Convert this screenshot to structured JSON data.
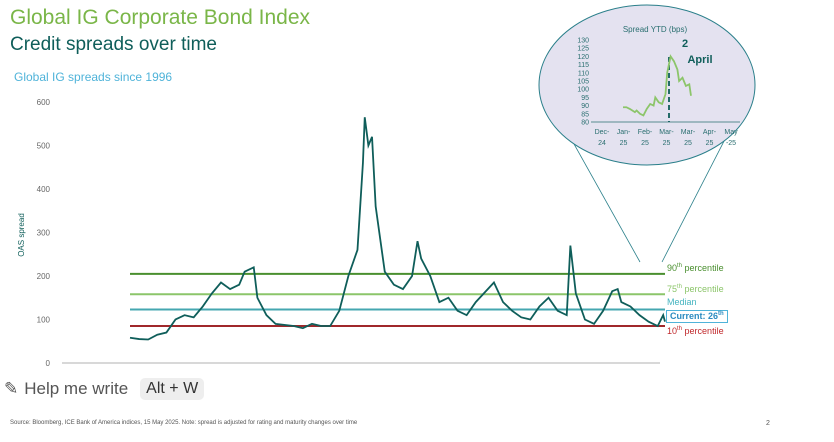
{
  "header": {
    "title": "Global IG Corporate Bond Index",
    "subtitle": "Credit spreads over time"
  },
  "footer": {
    "source": "Source: Bloomberg, ICE Bank of America indices, 15 May 2025. Note: spread is adjusted for rating and maturity changes over time",
    "page": "2"
  },
  "overlay": {
    "help_label": "Help me write",
    "shortcut": "Alt + W"
  },
  "legend": {
    "p90": "90",
    "p75": "75",
    "median": "Median",
    "current": "Current: 26",
    "p10": "10",
    "th": "th",
    "percentile": "percentile"
  },
  "colors": {
    "series": "#0f5e5a",
    "p90": "#4a8f2f",
    "p75": "#8cc56a",
    "median": "#45a7b0",
    "p10": "#a0282b",
    "inset_bg": "#e4e2f0",
    "inset_line": "#8cc56a"
  },
  "chart_data": [
    {
      "type": "line",
      "title": "Global IG spreads since 1996",
      "ylabel": "OAS spread",
      "ylim": [
        0,
        600
      ],
      "yticks": [
        "0",
        "100",
        "200",
        "300",
        "400",
        "500",
        "600"
      ],
      "x": [
        1996,
        1996.5,
        1997,
        1997.5,
        1998,
        1998.5,
        1999,
        1999.5,
        2000,
        2000.5,
        2001,
        2001.5,
        2002,
        2002.3,
        2002.8,
        2003,
        2003.5,
        2004,
        2005,
        2005.5,
        2006,
        2006.5,
        2007,
        2007.5,
        2008,
        2008.5,
        2008.8,
        2008.9,
        2009.1,
        2009.3,
        2009.5,
        2010,
        2010.5,
        2011,
        2011.5,
        2011.8,
        2012,
        2012.5,
        2013,
        2013.5,
        2014,
        2014.5,
        2015,
        2016,
        2016.5,
        2017,
        2017.5,
        2018,
        2018.5,
        2019,
        2019.5,
        2020,
        2020.2,
        2020.5,
        2021,
        2021.5,
        2022,
        2022.5,
        2022.8,
        2023,
        2023.5,
        2024,
        2024.5,
        2025,
        2025.3,
        2025.4
      ],
      "y": [
        58,
        55,
        54,
        65,
        70,
        100,
        110,
        105,
        130,
        160,
        185,
        170,
        180,
        210,
        220,
        150,
        110,
        90,
        85,
        80,
        90,
        85,
        85,
        120,
        200,
        260,
        460,
        565,
        500,
        520,
        360,
        210,
        180,
        170,
        200,
        280,
        240,
        200,
        140,
        150,
        120,
        110,
        140,
        185,
        140,
        120,
        105,
        100,
        130,
        150,
        120,
        110,
        270,
        160,
        100,
        90,
        120,
        165,
        170,
        140,
        130,
        110,
        95,
        85,
        110,
        95
      ],
      "percentiles": {
        "p90": 205,
        "p75": 158,
        "median": 123,
        "p10": 85,
        "current": 95
      }
    },
    {
      "type": "line",
      "title": "Spread YTD (bps)",
      "annotation": "2 April",
      "annotation_num": "2",
      "annotation_word": "April",
      "ylim": [
        80,
        130
      ],
      "yticks": [
        "80",
        "85",
        "90",
        "95",
        "100",
        "105",
        "110",
        "115",
        "120",
        "125",
        "130"
      ],
      "xticks": [
        [
          "Dec-",
          "24"
        ],
        [
          "Jan-",
          "25"
        ],
        [
          "Feb-",
          "25"
        ],
        [
          "Mar-",
          "25"
        ],
        [
          "Mar-",
          "25"
        ],
        [
          "Apr-",
          "25"
        ],
        [
          "May",
          "-25"
        ]
      ],
      "x": [
        0,
        0.1,
        0.2,
        0.35,
        0.4,
        0.5,
        0.6,
        0.7,
        0.8,
        0.9,
        0.95,
        1.05,
        1.15,
        1.25,
        1.3,
        1.4,
        1.5,
        1.6,
        1.65,
        1.75,
        1.85,
        1.95,
        2.0
      ],
      "y": [
        89,
        89,
        88,
        86,
        87,
        85,
        84,
        88,
        91,
        90,
        95,
        92,
        91,
        97,
        110,
        120,
        117,
        112,
        105,
        107,
        102,
        103,
        96
      ]
    }
  ]
}
